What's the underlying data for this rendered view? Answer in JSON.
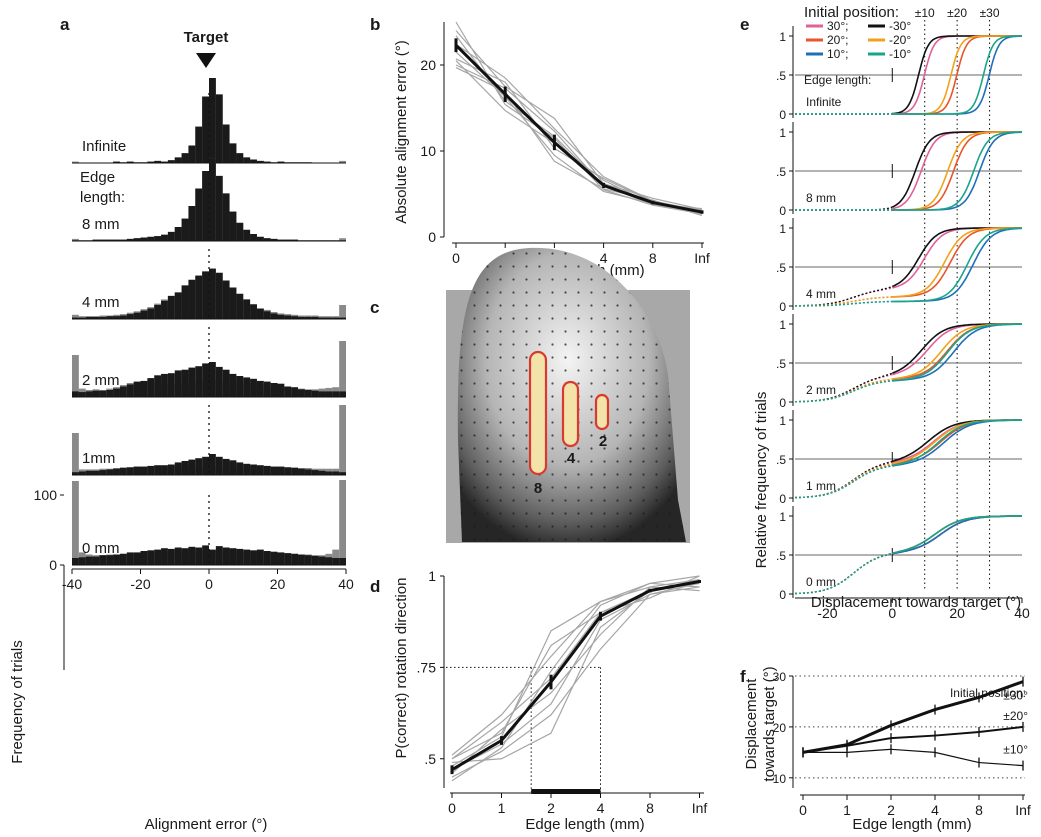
{
  "figure": {
    "panels": [
      "a",
      "b",
      "c",
      "d",
      "e",
      "f"
    ]
  },
  "chart_data": [
    {
      "panel": "a",
      "type": "bar",
      "title": "Target",
      "xlabel": "Alignment error  (°)",
      "ylabel": "Frequency of trials",
      "xlim": [
        -40,
        40
      ],
      "x_ticks": [
        "-40",
        "-20",
        "0",
        "20",
        "40"
      ],
      "y_ticks": [
        "0",
        "100"
      ],
      "ylim": [
        0,
        160
      ],
      "bin_width": 2,
      "edge_length_title": "Edge length:",
      "series_colors": {
        "black": "#1a1a1a",
        "grey": "#8a8a8a"
      },
      "rows": [
        {
          "label": "Infinite",
          "black": [
            0,
            0,
            0,
            0,
            0,
            0,
            2,
            1,
            2,
            1,
            1,
            2,
            3,
            2,
            4,
            8,
            14,
            25,
            52,
            95,
            125,
            98,
            55,
            28,
            14,
            8,
            5,
            3,
            2,
            1,
            2,
            1,
            1,
            1,
            1,
            0,
            0,
            0,
            0,
            0
          ],
          "grey": [
            2,
            0,
            0,
            0,
            0,
            0,
            2,
            1,
            2,
            1,
            1,
            2,
            3,
            2,
            4,
            8,
            14,
            25,
            52,
            95,
            125,
            98,
            55,
            28,
            14,
            8,
            5,
            3,
            2,
            1,
            2,
            1,
            1,
            1,
            1,
            0,
            0,
            0,
            0,
            3
          ]
        },
        {
          "label": "8 mm",
          "black": [
            1,
            1,
            1,
            2,
            2,
            2,
            2,
            2,
            3,
            4,
            5,
            6,
            7,
            9,
            13,
            20,
            32,
            50,
            75,
            100,
            118,
            93,
            68,
            42,
            26,
            16,
            10,
            6,
            4,
            3,
            2,
            2,
            2,
            1,
            1,
            1,
            1,
            1,
            1,
            1
          ],
          "grey": [
            3,
            1,
            1,
            2,
            2,
            2,
            2,
            2,
            3,
            4,
            5,
            6,
            7,
            9,
            13,
            20,
            32,
            50,
            75,
            100,
            118,
            93,
            68,
            42,
            26,
            16,
            10,
            6,
            4,
            3,
            2,
            2,
            2,
            1,
            1,
            1,
            1,
            1,
            1,
            4
          ]
        },
        {
          "label": "4 mm",
          "black": [
            2,
            2,
            3,
            3,
            3,
            4,
            4,
            5,
            7,
            9,
            12,
            15,
            20,
            26,
            33,
            38,
            48,
            56,
            62,
            68,
            72,
            66,
            55,
            45,
            36,
            28,
            21,
            15,
            11,
            8,
            6,
            5,
            4,
            3,
            3,
            3,
            2,
            2,
            2,
            2
          ],
          "grey": [
            6,
            4,
            4,
            4,
            5,
            5,
            6,
            7,
            9,
            11,
            14,
            17,
            22,
            28,
            33,
            38,
            48,
            56,
            62,
            68,
            72,
            66,
            55,
            45,
            36,
            28,
            21,
            15,
            13,
            10,
            8,
            7,
            6,
            5,
            5,
            5,
            4,
            4,
            4,
            20
          ]
        },
        {
          "label": "2 mm",
          "black": [
            8,
            7,
            8,
            9,
            9,
            10,
            12,
            15,
            18,
            22,
            23,
            27,
            31,
            33,
            34,
            38,
            39,
            42,
            44,
            48,
            50,
            43,
            39,
            33,
            30,
            28,
            26,
            23,
            22,
            20,
            19,
            15,
            14,
            11,
            10,
            9,
            8,
            8,
            8,
            8
          ],
          "grey": [
            60,
            12,
            10,
            11,
            10,
            12,
            14,
            17,
            20,
            20,
            22,
            20,
            19,
            18,
            19,
            18,
            20,
            21,
            22,
            23,
            24,
            23,
            22,
            21,
            20,
            18,
            19,
            17,
            16,
            15,
            14,
            13,
            12,
            12,
            11,
            11,
            12,
            13,
            14,
            80
          ]
        },
        {
          "label": "1mm",
          "black": [
            4,
            5,
            6,
            6,
            7,
            8,
            9,
            10,
            11,
            12,
            12,
            13,
            14,
            14,
            15,
            18,
            20,
            22,
            24,
            26,
            30,
            26,
            23,
            21,
            18,
            16,
            15,
            14,
            13,
            12,
            12,
            11,
            10,
            9,
            8,
            7,
            6,
            5,
            5,
            4
          ],
          "grey": [
            60,
            8,
            8,
            8,
            9,
            9,
            10,
            11,
            11,
            12,
            12,
            12,
            12,
            12,
            12,
            12,
            12,
            12,
            12,
            12,
            12,
            12,
            12,
            12,
            12,
            12,
            12,
            12,
            12,
            12,
            12,
            11,
            11,
            10,
            10,
            9,
            9,
            9,
            9,
            100
          ]
        },
        {
          "label": "0 mm",
          "black": [
            10,
            11,
            12,
            12,
            14,
            14,
            15,
            16,
            18,
            18,
            20,
            21,
            22,
            24,
            23,
            25,
            24,
            26,
            25,
            28,
            22,
            27,
            25,
            24,
            23,
            22,
            21,
            22,
            20,
            19,
            18,
            17,
            16,
            15,
            14,
            13,
            12,
            11,
            10,
            10
          ],
          "grey": [
            120,
            18,
            15,
            14,
            14,
            15,
            15,
            16,
            16,
            16,
            16,
            17,
            18,
            19,
            20,
            19,
            20,
            21,
            20,
            20,
            20,
            21,
            20,
            19,
            18,
            19,
            20,
            19,
            18,
            18,
            17,
            16,
            16,
            15,
            15,
            14,
            14,
            16,
            22,
            150
          ]
        }
      ]
    },
    {
      "panel": "b",
      "type": "line",
      "xlabel": "Edge length (mm)",
      "ylabel": "Absolute alignment error (°)",
      "categories": [
        "0",
        "1",
        "2",
        "4",
        "8",
        "Inf"
      ],
      "ylim": [
        0,
        25
      ],
      "y_ticks": [
        "0",
        "10",
        "20"
      ],
      "mean": [
        22.3,
        16.6,
        11.0,
        6.0,
        4.0,
        2.9
      ],
      "sem": [
        0.8,
        0.9,
        0.9,
        0.3,
        0.2,
        0.2
      ],
      "subjects": [
        [
          25.0,
          15.4,
          11.5,
          5.5,
          3.7,
          2.7
        ],
        [
          24.0,
          17.5,
          13.8,
          6.2,
          4.5,
          3.2
        ],
        [
          22.4,
          18.5,
          12.6,
          7.0,
          4.2,
          3.0
        ],
        [
          21.5,
          16.3,
          9.5,
          5.3,
          3.9,
          2.8
        ],
        [
          20.5,
          14.7,
          10.9,
          6.6,
          3.8,
          3.3
        ],
        [
          19.7,
          16.9,
          8.8,
          5.6,
          4.3,
          2.5
        ],
        [
          20.7,
          18.0,
          10.3,
          6.8,
          4.1,
          3.1
        ],
        [
          23.4,
          15.8,
          11.7,
          6.0,
          3.8,
          2.9
        ],
        [
          20.0,
          17.3,
          12.3,
          5.9,
          4.0,
          3.0
        ]
      ]
    },
    {
      "panel": "c",
      "type": "image",
      "stimulus_labels": [
        "8",
        "4",
        "2"
      ],
      "colors": {
        "outline": "#d83a2f",
        "fill": "#f3e3a8"
      }
    },
    {
      "panel": "d",
      "type": "line",
      "xlabel": "Edge length (mm)",
      "ylabel": "P(correct) rotation direction",
      "categories": [
        "0",
        "1",
        "2",
        "4",
        "8",
        "Inf"
      ],
      "ylim": [
        0.42,
        1.0
      ],
      "y_ticks": [
        "1",
        ".75",
        ".5"
      ],
      "mean": [
        0.47,
        0.55,
        0.71,
        0.89,
        0.96,
        0.985
      ],
      "sem": [
        0.012,
        0.012,
        0.02,
        0.012,
        0.005,
        0.004
      ],
      "threshold_level": 0.75,
      "threshold_x": [
        1.6,
        3.0
      ],
      "subjects": [
        [
          0.51,
          0.62,
          0.78,
          0.93,
          0.97,
          0.99
        ],
        [
          0.5,
          0.6,
          0.72,
          0.9,
          0.96,
          0.98
        ],
        [
          0.48,
          0.56,
          0.85,
          0.93,
          0.98,
          1.0
        ],
        [
          0.47,
          0.54,
          0.65,
          0.88,
          0.95,
          0.97
        ],
        [
          0.46,
          0.58,
          0.68,
          0.84,
          0.97,
          0.96
        ],
        [
          0.45,
          0.52,
          0.62,
          0.8,
          0.95,
          0.98
        ],
        [
          0.49,
          0.5,
          0.57,
          0.86,
          0.96,
          0.99
        ],
        [
          0.44,
          0.53,
          0.74,
          0.92,
          0.98,
          0.97
        ],
        [
          0.5,
          0.57,
          0.81,
          0.9,
          0.94,
          1.0
        ]
      ]
    },
    {
      "panel": "e",
      "type": "line",
      "xlabel": "Displacement towards target (°)",
      "ylabel": "Relative frequency of trials",
      "x_ticks": [
        "-20",
        "0",
        "20",
        "40"
      ],
      "xlim": [
        -30,
        40
      ],
      "y_ticks": [
        "1",
        ".5",
        "0"
      ],
      "legend_title": "Initial position:",
      "legend": [
        {
          "name": "30°",
          "color": "#e0609a"
        },
        {
          "name": "-30°",
          "color": "#111111"
        },
        {
          "name": "20°",
          "color": "#e8542b"
        },
        {
          "name": "-20°",
          "color": "#f2a21a"
        },
        {
          "name": "10°",
          "color": "#1d6fb8"
        },
        {
          "name": "-10°",
          "color": "#1aa58a"
        }
      ],
      "reference_lines": {
        "values": [
          10,
          20,
          30
        ],
        "labels": [
          "±10",
          "±20",
          "±30"
        ]
      },
      "edge_length_title": "Edge length:",
      "rows": [
        {
          "label": "Infinite",
          "base": [
            0,
            0,
            0
          ],
          "center": [
            9,
            19,
            29
          ],
          "width": 1.5
        },
        {
          "label": "8 mm",
          "base": [
            0,
            0,
            0
          ],
          "center": [
            8,
            18,
            26
          ],
          "width": 2.2
        },
        {
          "label": "4 mm",
          "base": [
            0.22,
            0.12,
            0.06
          ],
          "center": [
            9,
            17,
            24
          ],
          "width": 2.8
        },
        {
          "label": "2 mm",
          "base": [
            0.34,
            0.3,
            0.28
          ],
          "center": [
            10,
            16,
            18
          ],
          "width": 3.5
        },
        {
          "label": "1 mm",
          "base": [
            0.46,
            0.44,
            0.42
          ],
          "center": [
            12,
            14,
            15
          ],
          "width": 4.0
        },
        {
          "label": "0 mm",
          "base": [
            0.53,
            0.53,
            0.53
          ],
          "center": [
            14,
            14,
            14
          ],
          "width": 4.0
        }
      ]
    },
    {
      "panel": "f",
      "type": "line",
      "xlabel": "Edge length (mm)",
      "ylabel": [
        "Displacement",
        "towards target (°)"
      ],
      "categories": [
        "0",
        "1",
        "2",
        "4",
        "8",
        "Inf"
      ],
      "ylim": [
        8,
        30
      ],
      "y_ticks": [
        "30",
        "20",
        "10"
      ],
      "legend_title": "Initial position:",
      "series": [
        {
          "name": "±30°",
          "values": [
            15.0,
            16.5,
            20.3,
            23.4,
            25.8,
            28.9
          ]
        },
        {
          "name": "±20°",
          "values": [
            15.0,
            16.3,
            17.8,
            18.3,
            19.0,
            20.0
          ]
        },
        {
          "name": "±10°",
          "values": [
            15.0,
            15.0,
            15.6,
            15.0,
            13.0,
            12.4
          ]
        }
      ]
    }
  ]
}
